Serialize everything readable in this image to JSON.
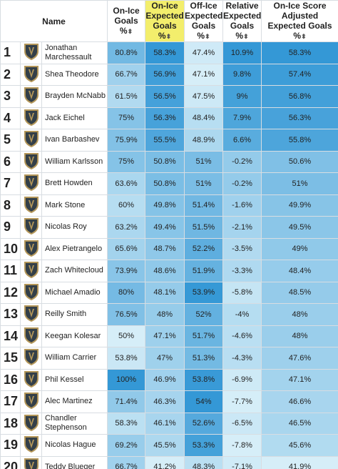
{
  "table": {
    "columns": [
      "Name",
      "On-Ice Goals %",
      "On-Ice Expected Goals %",
      "Off-Ice Expected Goals %",
      "Relative Expected Goals %",
      "On-Ice Score Adjusted Expected Goals %"
    ],
    "rows": [
      [
        "1",
        "Jonathan Marchessault",
        "80.8%",
        "58.3%",
        "47.4%",
        "10.9%",
        "58.3%"
      ],
      [
        "2",
        "Shea Theodore",
        "66.7%",
        "56.9%",
        "47.1%",
        "9.8%",
        "57.4%"
      ],
      [
        "3",
        "Brayden McNabb",
        "61.5%",
        "56.5%",
        "47.5%",
        "9%",
        "56.8%"
      ],
      [
        "4",
        "Jack Eichel",
        "75%",
        "56.3%",
        "48.4%",
        "7.9%",
        "56.3%"
      ],
      [
        "5",
        "Ivan Barbashev",
        "75.9%",
        "55.5%",
        "48.9%",
        "6.6%",
        "55.8%"
      ],
      [
        "6",
        "William Karlsson",
        "75%",
        "50.8%",
        "51%",
        "-0.2%",
        "50.6%"
      ],
      [
        "7",
        "Brett Howden",
        "63.6%",
        "50.8%",
        "51%",
        "-0.2%",
        "51%"
      ],
      [
        "8",
        "Mark Stone",
        "60%",
        "49.8%",
        "51.4%",
        "-1.6%",
        "49.9%"
      ],
      [
        "9",
        "Nicolas Roy",
        "63.2%",
        "49.4%",
        "51.5%",
        "-2.1%",
        "49.5%"
      ],
      [
        "10",
        "Alex Pietrangelo",
        "65.6%",
        "48.7%",
        "52.2%",
        "-3.5%",
        "49%"
      ],
      [
        "11",
        "Zach Whitecloud",
        "73.9%",
        "48.6%",
        "51.9%",
        "-3.3%",
        "48.4%"
      ],
      [
        "12",
        "Michael Amadio",
        "80%",
        "48.1%",
        "53.9%",
        "-5.8%",
        "48.5%"
      ],
      [
        "13",
        "Reilly Smith",
        "76.5%",
        "48%",
        "52%",
        "-4%",
        "48%"
      ],
      [
        "14",
        "Keegan Kolesar",
        "50%",
        "47.1%",
        "51.7%",
        "-4.6%",
        "48%"
      ],
      [
        "15",
        "William Carrier",
        "53.8%",
        "47%",
        "51.3%",
        "-4.3%",
        "47.6%"
      ],
      [
        "16",
        "Phil Kessel",
        "100%",
        "46.9%",
        "53.8%",
        "-6.9%",
        "47.1%"
      ],
      [
        "17",
        "Alec Martinez",
        "71.4%",
        "46.3%",
        "54%",
        "-7.7%",
        "46.6%"
      ],
      [
        "18",
        "Chandler Stephenson",
        "58.3%",
        "46.1%",
        "52.6%",
        "-6.5%",
        "46.5%"
      ],
      [
        "19",
        "Nicolas Hague",
        "69.2%",
        "45.5%",
        "53.3%",
        "-7.8%",
        "45.6%"
      ],
      [
        "20",
        "Teddy Blueger",
        "66.7%",
        "41.2%",
        "48.3%",
        "-7.1%",
        "41.9%"
      ]
    ]
  }
}
